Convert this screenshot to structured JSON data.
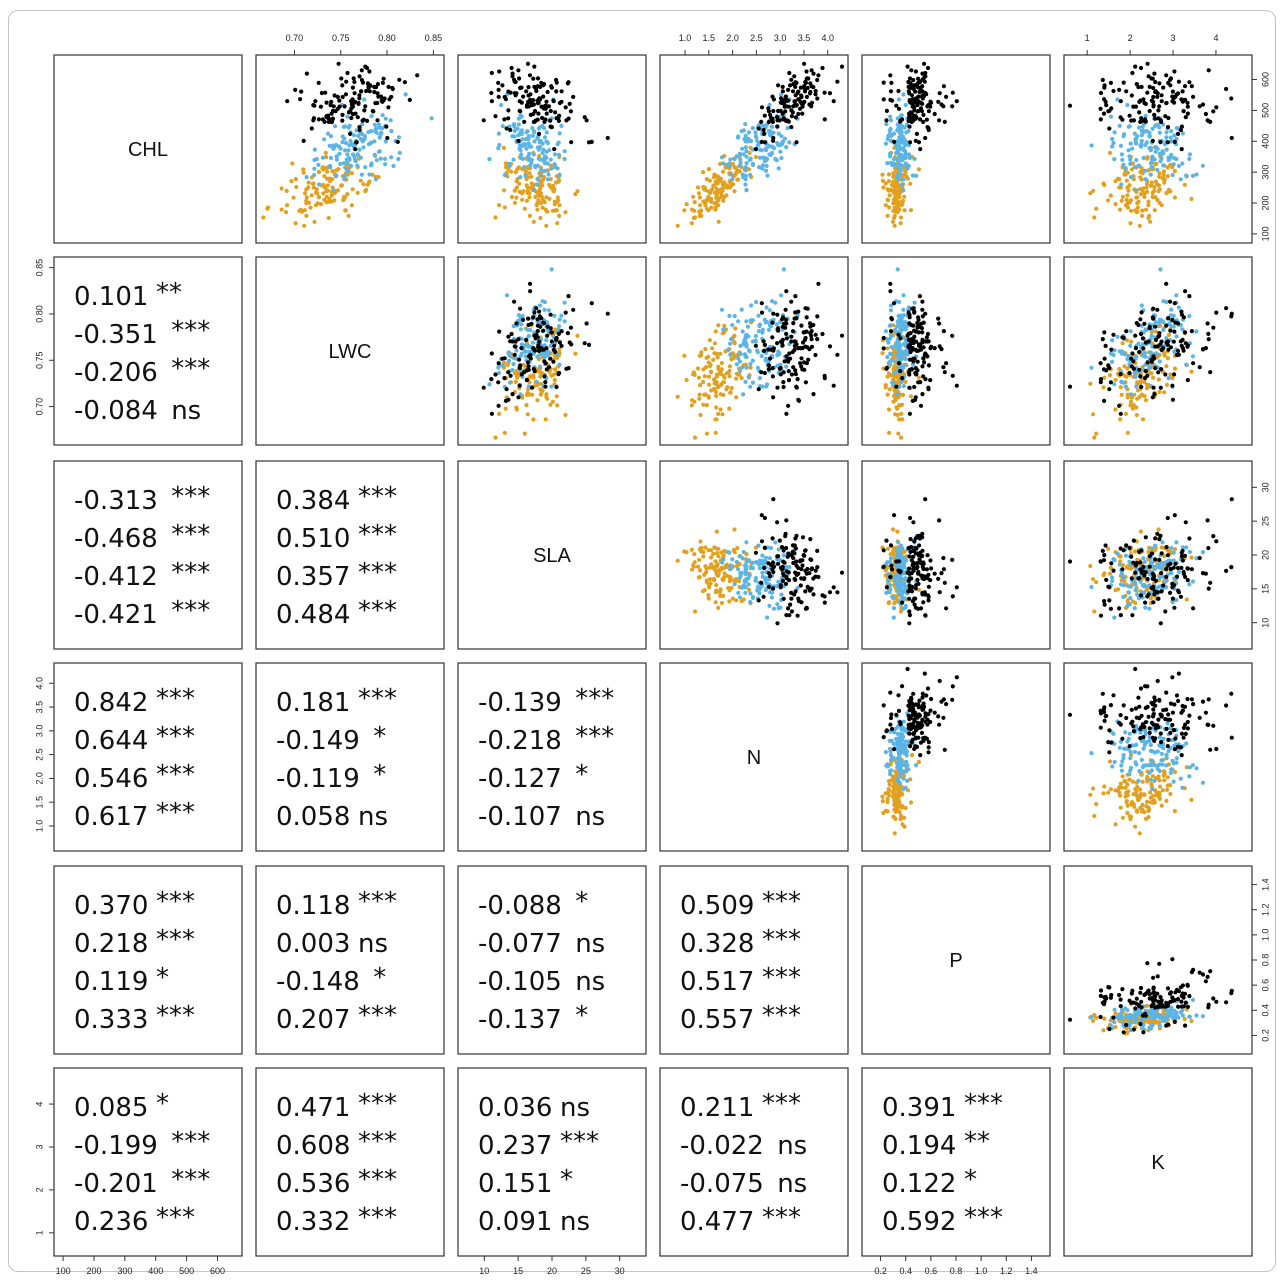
{
  "chart_data": {
    "type": "scatter",
    "variables": [
      "CHL",
      "LWC",
      "SLA",
      "N",
      "P",
      "K"
    ],
    "group_colors": [
      "#000000",
      "#5bb4e6",
      "#e2a020"
    ],
    "axes": {
      "CHL": {
        "range": [
          90,
          660
        ],
        "ticks": [
          100,
          200,
          300,
          400,
          500,
          600
        ],
        "tick_labels": [
          "100",
          "200",
          "300",
          "400",
          "500",
          "600"
        ]
      },
      "LWC": {
        "range": [
          0.665,
          0.855
        ],
        "ticks": [
          0.7,
          0.75,
          0.8,
          0.85
        ],
        "tick_labels": [
          "0.70",
          "0.75",
          "0.80",
          "0.85"
        ]
      },
      "SLA": {
        "range": [
          7,
          33
        ],
        "ticks": [
          10,
          15,
          20,
          25,
          30
        ],
        "tick_labels": [
          "10",
          "15",
          "20",
          "25",
          "30"
        ]
      },
      "N": {
        "range": [
          0.6,
          4.3
        ],
        "ticks": [
          1.0,
          1.5,
          2.0,
          2.5,
          3.0,
          3.5,
          4.0
        ],
        "tick_labels": [
          "1.0",
          "1.5",
          "2.0",
          "2.5",
          "3.0",
          "3.5",
          "4.0"
        ]
      },
      "P": {
        "range": [
          0.1,
          1.5
        ],
        "ticks": [
          0.2,
          0.4,
          0.6,
          0.8,
          1.0,
          1.2,
          1.4
        ],
        "tick_labels": [
          "0.2",
          "0.4",
          "0.6",
          "0.8",
          "1.0",
          "1.2",
          "1.4"
        ]
      },
      "K": {
        "range": [
          0.6,
          4.7
        ],
        "ticks": [
          1,
          2,
          3,
          4
        ],
        "tick_labels": [
          "1",
          "2",
          "3",
          "4"
        ]
      }
    },
    "group_means": [
      {
        "CHL": 530,
        "LWC": 0.765,
        "SLA": 18.0,
        "N": 3.3,
        "P": 0.42,
        "K": 2.6
      },
      {
        "CHL": 390,
        "LWC": 0.768,
        "SLA": 17.0,
        "N": 2.6,
        "P": 0.33,
        "K": 2.5
      },
      {
        "CHL": 250,
        "LWC": 0.735,
        "SLA": 17.5,
        "N": 1.7,
        "P": 0.3,
        "K": 2.3
      }
    ],
    "group_sds": [
      {
        "CHL": 55,
        "LWC": 0.03,
        "SLA": 3.5,
        "N": 0.4,
        "P": 0.16,
        "K": 0.7
      },
      {
        "CHL": 55,
        "LWC": 0.025,
        "SLA": 2.5,
        "N": 0.4,
        "P": 0.06,
        "K": 0.45
      },
      {
        "CHL": 50,
        "LWC": 0.025,
        "SLA": 2.5,
        "N": 0.3,
        "P": 0.06,
        "K": 0.45
      }
    ],
    "correlations": [
      {
        "pair": [
          "CHL",
          "LWC"
        ],
        "lines": [
          [
            "0.101",
            "**"
          ],
          [
            "-0.351",
            "***"
          ],
          [
            "-0.206",
            "***"
          ],
          [
            "-0.084",
            "ns"
          ]
        ]
      },
      {
        "pair": [
          "CHL",
          "SLA"
        ],
        "lines": [
          [
            "-0.313",
            "***"
          ],
          [
            "-0.468",
            "***"
          ],
          [
            "-0.412",
            "***"
          ],
          [
            "-0.421",
            "***"
          ]
        ]
      },
      {
        "pair": [
          "LWC",
          "SLA"
        ],
        "lines": [
          [
            "0.384",
            "***"
          ],
          [
            "0.510",
            "***"
          ],
          [
            "0.357",
            "***"
          ],
          [
            "0.484",
            "***"
          ]
        ]
      },
      {
        "pair": [
          "CHL",
          "N"
        ],
        "lines": [
          [
            "0.842",
            "***"
          ],
          [
            "0.644",
            "***"
          ],
          [
            "0.546",
            "***"
          ],
          [
            "0.617",
            "***"
          ]
        ]
      },
      {
        "pair": [
          "LWC",
          "N"
        ],
        "lines": [
          [
            "0.181",
            "***"
          ],
          [
            "-0.149",
            "*"
          ],
          [
            "-0.119",
            "*"
          ],
          [
            "0.058",
            "ns"
          ]
        ]
      },
      {
        "pair": [
          "SLA",
          "N"
        ],
        "lines": [
          [
            "-0.139",
            "***"
          ],
          [
            "-0.218",
            "***"
          ],
          [
            "-0.127",
            "*"
          ],
          [
            "-0.107",
            "ns"
          ]
        ]
      },
      {
        "pair": [
          "CHL",
          "P"
        ],
        "lines": [
          [
            "0.370",
            "***"
          ],
          [
            "0.218",
            "***"
          ],
          [
            "0.119",
            "*"
          ],
          [
            "0.333",
            "***"
          ]
        ]
      },
      {
        "pair": [
          "LWC",
          "P"
        ],
        "lines": [
          [
            "0.118",
            "***"
          ],
          [
            "0.003",
            "ns"
          ],
          [
            "-0.148",
            "*"
          ],
          [
            "0.207",
            "***"
          ]
        ]
      },
      {
        "pair": [
          "SLA",
          "P"
        ],
        "lines": [
          [
            "-0.088",
            "*"
          ],
          [
            "-0.077",
            "ns"
          ],
          [
            "-0.105",
            "ns"
          ],
          [
            "-0.137",
            "*"
          ]
        ]
      },
      {
        "pair": [
          "N",
          "P"
        ],
        "lines": [
          [
            "0.509",
            "***"
          ],
          [
            "0.328",
            "***"
          ],
          [
            "0.517",
            "***"
          ],
          [
            "0.557",
            "***"
          ]
        ]
      },
      {
        "pair": [
          "CHL",
          "K"
        ],
        "lines": [
          [
            "0.085",
            "*"
          ],
          [
            "-0.199",
            "***"
          ],
          [
            "-0.201",
            "***"
          ],
          [
            "0.236",
            "***"
          ]
        ]
      },
      {
        "pair": [
          "LWC",
          "K"
        ],
        "lines": [
          [
            "0.471",
            "***"
          ],
          [
            "0.608",
            "***"
          ],
          [
            "0.536",
            "***"
          ],
          [
            "0.332",
            "***"
          ]
        ]
      },
      {
        "pair": [
          "SLA",
          "K"
        ],
        "lines": [
          [
            "0.036",
            "ns"
          ],
          [
            "0.237",
            "***"
          ],
          [
            "0.151",
            "*"
          ],
          [
            "0.091",
            "ns"
          ]
        ]
      },
      {
        "pair": [
          "N",
          "K"
        ],
        "lines": [
          [
            "0.211",
            "***"
          ],
          [
            "-0.022",
            "ns"
          ],
          [
            "-0.075",
            "ns"
          ],
          [
            "0.477",
            "***"
          ]
        ]
      },
      {
        "pair": [
          "P",
          "K"
        ],
        "lines": [
          [
            "0.391",
            "***"
          ],
          [
            "0.194",
            "**"
          ],
          [
            "0.122",
            "*"
          ],
          [
            "0.592",
            "***"
          ]
        ]
      }
    ]
  }
}
